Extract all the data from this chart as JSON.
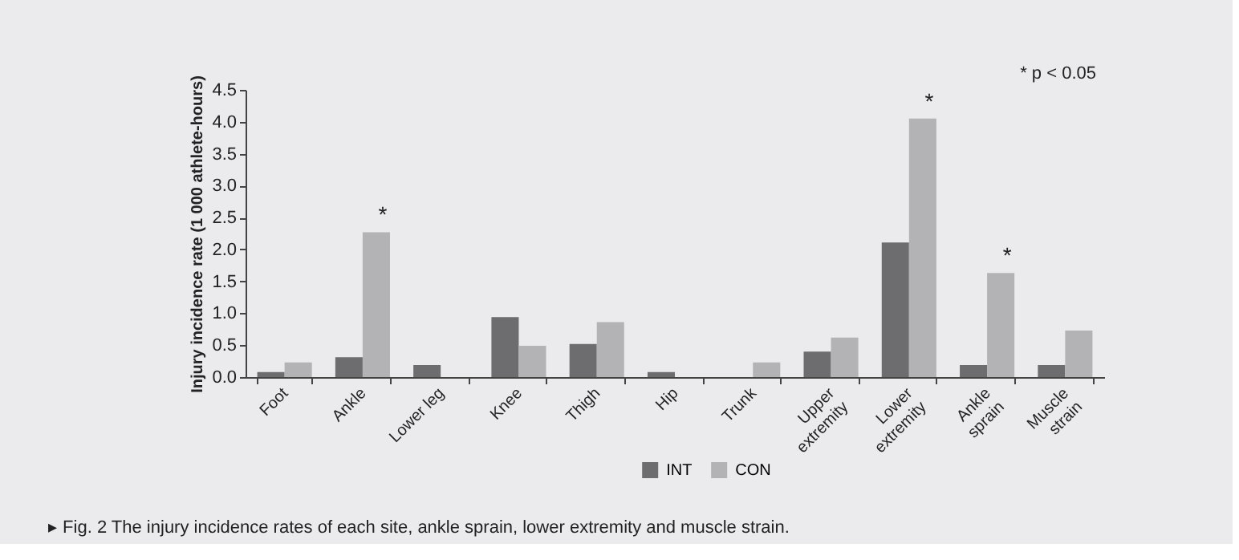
{
  "chart_data": {
    "type": "bar",
    "categories": [
      "Foot",
      "Ankle",
      "Lower leg",
      "Knee",
      "Thigh",
      "Hip",
      "Trunk",
      "Upper\nextremity",
      "Lower\nextremity",
      "Ankle\nsprain",
      "Muscle\nstrain"
    ],
    "series": [
      {
        "name": "INT",
        "color": "#6d6d6f",
        "values": [
          0.08,
          0.31,
          0.19,
          0.94,
          0.52,
          0.08,
          0,
          0.4,
          2.11,
          0.19,
          0.19
        ]
      },
      {
        "name": "CON",
        "color": "#b3b3b5",
        "values": [
          0.23,
          2.27,
          0,
          0.49,
          0.86,
          0,
          0.23,
          0.62,
          4.05,
          1.63,
          0.73
        ]
      }
    ],
    "ylabel": "Injury incidence rate (1 000 athlete-hours)",
    "ylim": [
      0,
      4.5
    ],
    "yticks": [
      {
        "value": 0,
        "label": "0.0"
      },
      {
        "value": 0.5,
        "label": "0.5"
      },
      {
        "value": 1,
        "label": "1.0"
      },
      {
        "value": 1.5,
        "label": "1.5"
      },
      {
        "value": 2,
        "label": "2.0"
      },
      {
        "value": 2.5,
        "label": "2.5"
      },
      {
        "value": 3,
        "label": "3.0"
      },
      {
        "value": 3.5,
        "label": "3.5"
      },
      {
        "value": 4,
        "label": "4.0"
      },
      {
        "value": 4.5,
        "label": "4.5"
      }
    ],
    "annotations": [
      {
        "text": "*",
        "x": "Ankle",
        "y": 2.27
      },
      {
        "text": "*",
        "x": "Lower\nextremity",
        "y": 4.05
      },
      {
        "text": "*",
        "x": "Ankle\nsprain",
        "y": 1.63
      },
      "* p < 0.05",
      "▸ Fig. 2   The injury incidence rates of each site, ankle sprain, lower extremity and muscle strain."
    ],
    "grid": false,
    "legend": "bottom"
  }
}
